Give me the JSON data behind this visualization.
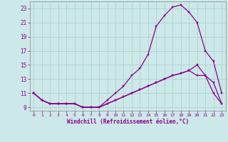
{
  "xlabel": "Windchill (Refroidissement éolien,°C)",
  "bg_color": "#cce8e8",
  "grid_color": "#aacccc",
  "line_color": "#880088",
  "xlim": [
    -0.5,
    23.5
  ],
  "ylim": [
    8.5,
    24.0
  ],
  "yticks": [
    9,
    11,
    13,
    15,
    17,
    19,
    21,
    23
  ],
  "xticks": [
    0,
    1,
    2,
    3,
    4,
    5,
    6,
    7,
    8,
    9,
    10,
    11,
    12,
    13,
    14,
    15,
    16,
    17,
    18,
    19,
    20,
    21,
    22,
    23
  ],
  "line1_x": [
    0,
    1,
    2,
    3,
    4,
    5,
    6,
    7,
    8,
    9,
    10,
    11,
    12,
    13,
    14,
    15,
    16,
    17,
    18,
    19,
    20,
    21,
    22,
    23
  ],
  "line1_y": [
    11,
    10,
    9.5,
    9.5,
    9.5,
    9.5,
    9.0,
    9.0,
    9.0,
    10,
    11,
    12,
    13.5,
    14.5,
    16.5,
    20.5,
    22,
    23.2,
    23.5,
    22.5,
    21,
    17,
    15.5,
    11
  ],
  "line2_x": [
    0,
    1,
    2,
    3,
    4,
    5,
    6,
    7,
    8,
    9,
    10,
    11,
    12,
    13,
    14,
    15,
    16,
    17,
    18,
    19,
    20,
    21,
    22,
    23
  ],
  "line2_y": [
    11,
    10,
    9.5,
    9.5,
    9.5,
    9.5,
    9.0,
    9.0,
    9.0,
    9.5,
    10,
    10.5,
    11,
    11.5,
    12,
    12.5,
    13,
    13.5,
    13.8,
    14.2,
    15,
    13.5,
    11,
    9.5
  ],
  "line3_x": [
    0,
    1,
    2,
    3,
    4,
    5,
    6,
    7,
    8,
    9,
    10,
    11,
    12,
    13,
    14,
    15,
    16,
    17,
    18,
    19,
    20,
    21,
    22,
    23
  ],
  "line3_y": [
    11,
    10,
    9.5,
    9.5,
    9.5,
    9.5,
    9.0,
    9.0,
    9.0,
    9.5,
    10,
    10.5,
    11,
    11.5,
    12,
    12.5,
    13,
    13.5,
    13.8,
    14.2,
    13.5,
    13.5,
    12.5,
    9.5
  ]
}
